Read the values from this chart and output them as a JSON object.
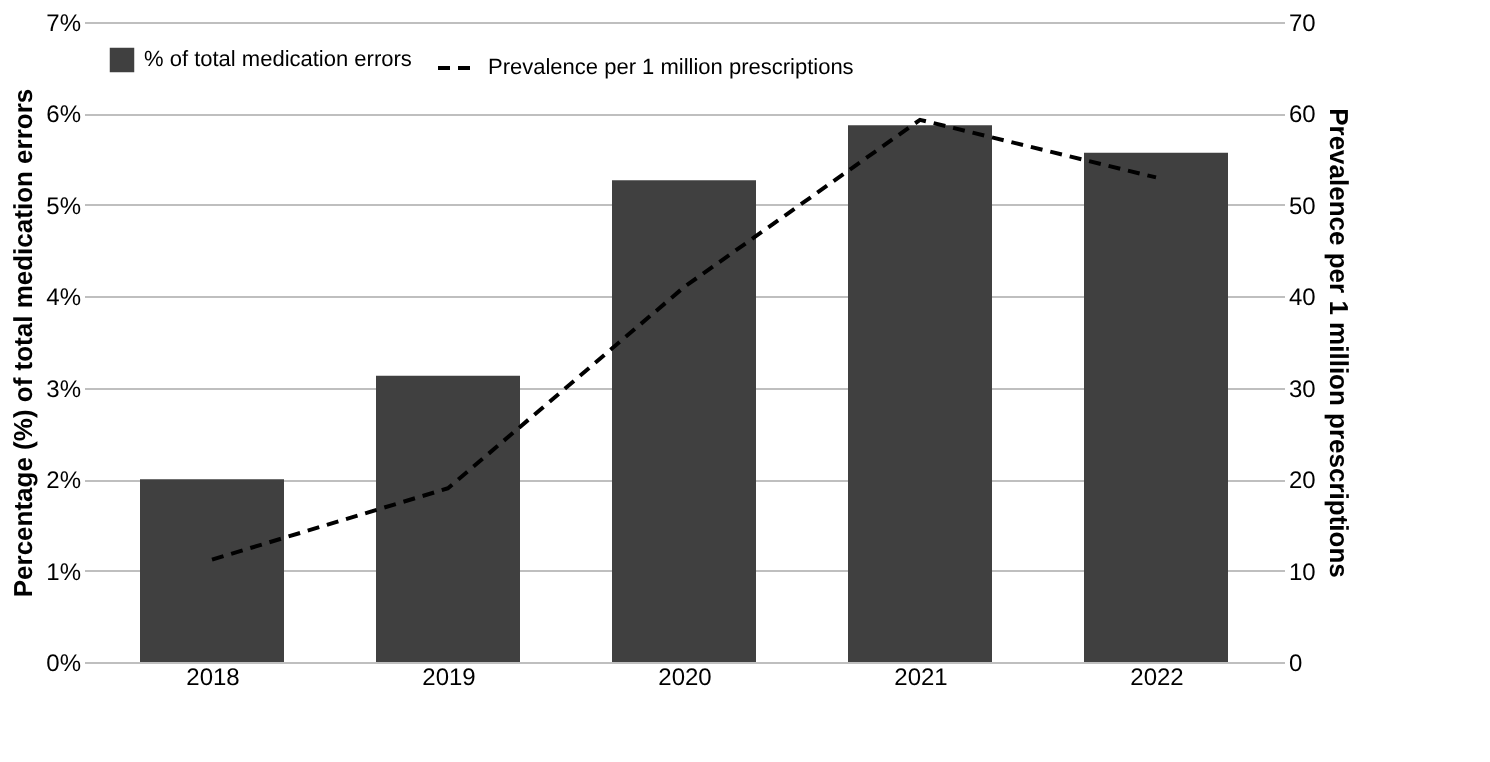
{
  "chart_data": {
    "type": "bar",
    "categories": [
      "2018",
      "2019",
      "2020",
      "2021",
      "2022"
    ],
    "series": [
      {
        "name": "% of total medication errors",
        "color": "#404040",
        "values": [
          2.0,
          3.13,
          5.27,
          5.87,
          5.57
        ]
      },
      {
        "name": "Prevalence per 1 million prescriptions",
        "type": "line",
        "axis": "y2",
        "color": "#000000",
        "line_style": "dashed",
        "values": [
          11.2,
          19.0,
          41,
          59.3,
          53
        ]
      }
    ],
    "ylabel": "Percentage (%) of total medication errors",
    "y2label": "Prevalence per 1 million prescriptions",
    "ylim": [
      0,
      7
    ],
    "yticks": [
      {
        "value": 0,
        "label": "0%"
      },
      {
        "value": 1,
        "label": "1%"
      },
      {
        "value": 2,
        "label": "2%"
      },
      {
        "value": 3,
        "label": "3%"
      },
      {
        "value": 4,
        "label": "4%"
      },
      {
        "value": 5,
        "label": "5%"
      },
      {
        "value": 6,
        "label": "6%"
      },
      {
        "value": 7,
        "label": "7%"
      }
    ],
    "y2lim": [
      0,
      70
    ],
    "y2ticks": [
      0,
      10,
      20,
      30,
      40,
      50,
      60,
      70
    ],
    "grid": "y",
    "legend": "top left",
    "marker": "none"
  }
}
